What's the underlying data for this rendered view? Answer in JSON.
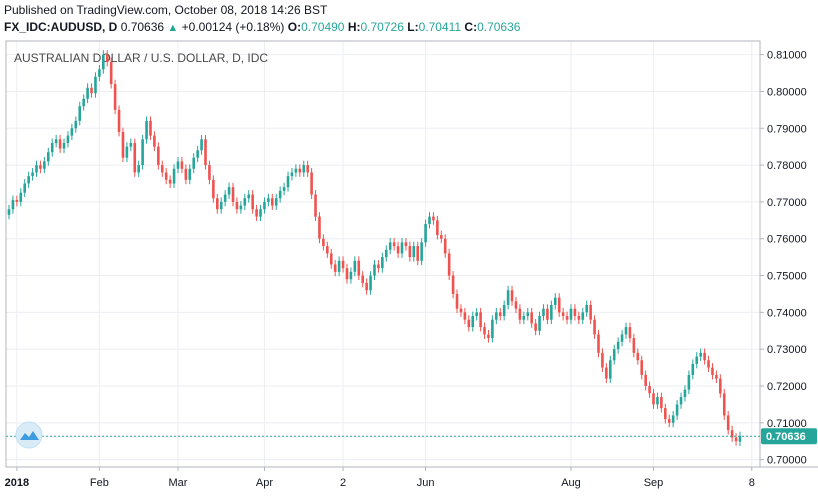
{
  "header": {
    "published": "Published on TradingView.com, October 08, 2018 14:26 BST",
    "symbol": "FX_IDC:AUDUSD, D",
    "last": "0.70636",
    "change": "+0.00124 (+0.18%)",
    "open_label": "O:",
    "open": "0.70490",
    "high_label": "H:",
    "high": "0.70726",
    "low_label": "L:",
    "low": "0.70411",
    "close_label": "C:",
    "close": "0.70636"
  },
  "colors": {
    "up": "#26a69a",
    "down": "#ef5350",
    "grid": "#eceef2",
    "last_price_line": "#26a69a",
    "axis_border": "#b2b5be"
  },
  "icons": {
    "logo": "tradingview-cloud-icon",
    "change_arrow": "up-triangle-icon"
  },
  "chart_data": {
    "type": "candlestick",
    "title": "AUSTRALIAN DOLLAR / U.S. DOLLAR, D, IDC",
    "ylim": [
      0.698,
      0.8137
    ],
    "y_ticks": [
      "0.81000",
      "0.80000",
      "0.79000",
      "0.78000",
      "0.77000",
      "0.76000",
      "0.75000",
      "0.74000",
      "0.73000",
      "0.72000",
      "0.71000",
      "0.70000"
    ],
    "x_ticks": [
      {
        "label": "2018",
        "index": 2,
        "bold": true
      },
      {
        "label": "Feb",
        "index": 23
      },
      {
        "label": "Mar",
        "index": 43
      },
      {
        "label": "Apr",
        "index": 65
      },
      {
        "label": "2",
        "index": 85
      },
      {
        "label": "Jun",
        "index": 106
      },
      {
        "label": "Aug",
        "index": 143
      },
      {
        "label": "Sep",
        "index": 164
      },
      {
        "label": "8",
        "index": 189
      }
    ],
    "last_price_label": "0.70636",
    "last_price": 0.70636,
    "closes": [
      0.768,
      0.7705,
      0.77,
      0.7725,
      0.775,
      0.777,
      0.778,
      0.78,
      0.779,
      0.781,
      0.7835,
      0.786,
      0.787,
      0.7845,
      0.786,
      0.788,
      0.79,
      0.792,
      0.796,
      0.798,
      0.801,
      0.7995,
      0.804,
      0.806,
      0.81,
      0.808,
      0.802,
      0.795,
      0.789,
      0.782,
      0.785,
      0.786,
      0.778,
      0.78,
      0.787,
      0.792,
      0.788,
      0.785,
      0.78,
      0.778,
      0.776,
      0.775,
      0.779,
      0.781,
      0.779,
      0.776,
      0.779,
      0.782,
      0.784,
      0.787,
      0.78,
      0.776,
      0.771,
      0.768,
      0.77,
      0.772,
      0.774,
      0.77,
      0.768,
      0.769,
      0.771,
      0.772,
      0.768,
      0.766,
      0.768,
      0.77,
      0.771,
      0.769,
      0.771,
      0.773,
      0.774,
      0.777,
      0.778,
      0.779,
      0.778,
      0.78,
      0.778,
      0.772,
      0.766,
      0.76,
      0.758,
      0.756,
      0.753,
      0.751,
      0.754,
      0.752,
      0.749,
      0.751,
      0.754,
      0.75,
      0.748,
      0.746,
      0.75,
      0.753,
      0.752,
      0.755,
      0.757,
      0.759,
      0.758,
      0.756,
      0.759,
      0.758,
      0.755,
      0.758,
      0.754,
      0.759,
      0.764,
      0.766,
      0.765,
      0.761,
      0.76,
      0.756,
      0.75,
      0.745,
      0.741,
      0.74,
      0.738,
      0.736,
      0.739,
      0.74,
      0.736,
      0.734,
      0.733,
      0.738,
      0.74,
      0.739,
      0.742,
      0.746,
      0.743,
      0.741,
      0.738,
      0.739,
      0.74,
      0.737,
      0.735,
      0.739,
      0.741,
      0.738,
      0.742,
      0.744,
      0.74,
      0.739,
      0.738,
      0.741,
      0.739,
      0.738,
      0.74,
      0.742,
      0.738,
      0.734,
      0.729,
      0.725,
      0.722,
      0.727,
      0.73,
      0.732,
      0.734,
      0.736,
      0.733,
      0.729,
      0.727,
      0.723,
      0.72,
      0.718,
      0.715,
      0.717,
      0.714,
      0.711,
      0.71,
      0.712,
      0.715,
      0.717,
      0.719,
      0.723,
      0.726,
      0.728,
      0.729,
      0.727,
      0.725,
      0.723,
      0.722,
      0.718,
      0.712,
      0.708,
      0.706,
      0.705,
      0.7064
    ]
  }
}
